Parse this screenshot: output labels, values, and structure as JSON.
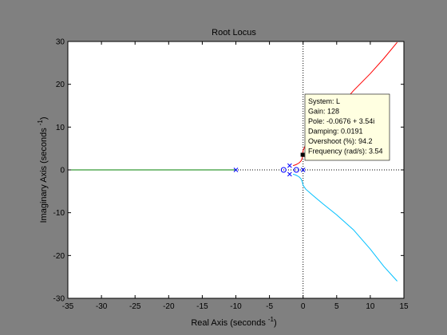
{
  "window": {
    "background": "#808080"
  },
  "chart_data": {
    "type": "line",
    "title": "Root Locus",
    "xlabel": "Real Axis (seconds",
    "xlabel_sup": "-1",
    "xlabel_close": ")",
    "ylabel": "Imaginary Axis (seconds",
    "ylabel_sup": "-1",
    "ylabel_close": ")",
    "xlim": [
      -35,
      15
    ],
    "ylim": [
      -30,
      30
    ],
    "xticks": [
      -35,
      -30,
      -25,
      -20,
      -15,
      -10,
      -5,
      0,
      5,
      10,
      15
    ],
    "yticks": [
      -30,
      -20,
      -10,
      0,
      10,
      20,
      30
    ],
    "grid": false,
    "reference_lines": {
      "x": 0,
      "y": 0,
      "style": "dotted"
    },
    "series": [
      {
        "color": "#008000",
        "x": [
          -35,
          -10
        ],
        "y": [
          0,
          0
        ]
      },
      {
        "color": "#ff0000",
        "x": [
          -1.5,
          -1.1,
          -0.6,
          -0.3,
          -0.1,
          -0.0676,
          0.0,
          0.4,
          1.5,
          3.0,
          5.0,
          7.5,
          10.0,
          12.0,
          14.0
        ],
        "y": [
          1.0,
          1.2,
          1.6,
          2.1,
          2.9,
          3.54,
          4.5,
          6.0,
          8.0,
          10.5,
          14.0,
          18.5,
          22.5,
          26.0,
          29.8
        ]
      },
      {
        "color": "#00c0ff",
        "x": [
          -1.5,
          -1.1,
          -0.6,
          -0.3,
          -0.1,
          0.0,
          0.4,
          1.5,
          3.0,
          5.0,
          7.5,
          10.0,
          12.0,
          14.0
        ],
        "y": [
          -1.0,
          -1.2,
          -1.6,
          -2.1,
          -2.9,
          -3.6,
          -4.5,
          -6.0,
          -8.0,
          -10.5,
          -14.0,
          -18.5,
          -22.5,
          -26.0
        ]
      }
    ],
    "poles": [
      {
        "x": -10,
        "y": 0
      },
      {
        "x": -2,
        "y": 1
      },
      {
        "x": -2,
        "y": -1
      },
      {
        "x": 0,
        "y": 0
      }
    ],
    "zeros": [
      {
        "x": -2.9,
        "y": 0
      },
      {
        "x": -1.0,
        "y": 0
      }
    ],
    "datatip": {
      "point": {
        "x": -0.0676,
        "y": 3.54
      },
      "lines": [
        "System: L",
        "Gain: 128",
        "Pole: -0.0676 + 3.54i",
        "Damping: 0.0191",
        "Overshoot (%): 94.2",
        "Frequency (rad/s): 3.54"
      ]
    }
  }
}
